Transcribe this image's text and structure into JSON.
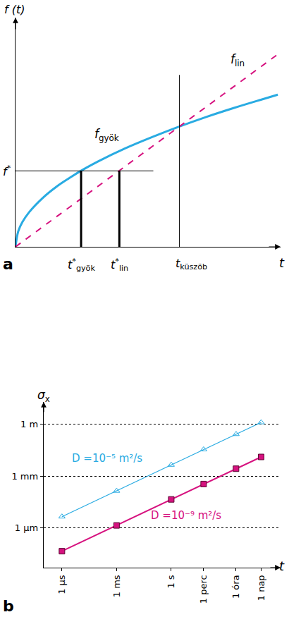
{
  "chart_data": [
    {
      "type": "line",
      "panel": "a",
      "x_label": "t",
      "y_label": "f (t)",
      "xlim": [
        0,
        9.7
      ],
      "ylim": [
        0,
        8
      ],
      "tick_labels": false,
      "series": [
        {
          "name": {
            "text": "f",
            "sub": "gyök"
          },
          "color": "#29abe2",
          "line_style": "solid",
          "x": [
            0,
            0.1,
            0.25,
            0.5,
            1,
            1.5,
            2,
            2.5,
            3,
            4,
            5,
            6,
            7,
            8,
            9,
            9.6
          ],
          "values": [
            0,
            0.54,
            0.86,
            1.21,
            1.71,
            2.1,
            2.42,
            2.71,
            2.97,
            3.43,
            3.83,
            4.2,
            4.54,
            4.85,
            5.14,
            5.31
          ]
        },
        {
          "name": {
            "text": "f",
            "sub": "lin"
          },
          "color": "#d6127f",
          "line_style": "dashed",
          "x": [
            0,
            9.6
          ],
          "values": [
            0,
            6.72
          ]
        }
      ],
      "reference_lines": [
        {
          "label": {
            "text": "f",
            "sup": "*"
          },
          "axis": "y",
          "value": 2.65
        },
        {
          "label": {
            "text": "t",
            "sup": "*",
            "sub": "gyök"
          },
          "axis": "x",
          "value": 2.4
        },
        {
          "label": {
            "text": "t",
            "sup": "*",
            "sub": "lin"
          },
          "axis": "x",
          "value": 3.8
        },
        {
          "label": {
            "text": "t",
            "sub": "küszöb"
          },
          "axis": "x",
          "value": 6
        }
      ]
    },
    {
      "type": "line",
      "panel": "b",
      "x_label": "t",
      "y_label": {
        "text": "σ",
        "sub": "x"
      },
      "log": true,
      "grid": "y",
      "xlim": [
        1e-07,
        1000000
      ],
      "ylim": [
        5e-09,
        20
      ],
      "xticks": [
        {
          "value": 1e-06,
          "label": "1 µs"
        },
        {
          "value": 0.001,
          "label": "1 ms"
        },
        {
          "value": 1,
          "label": "1 s"
        },
        {
          "value": 60,
          "label": "1 perc"
        },
        {
          "value": 3600,
          "label": "1 óra"
        },
        {
          "value": 86400,
          "label": "1 nap"
        }
      ],
      "yticks": [
        {
          "value": 1e-06,
          "label": "1 µm"
        },
        {
          "value": 0.001,
          "label": "1 mm"
        },
        {
          "value": 1,
          "label": "1 m"
        }
      ],
      "series": [
        {
          "name": "D =10⁻⁵ m²/s",
          "color": "#29abe2",
          "marker": "open-triangle",
          "x": [
            1e-06,
            0.001,
            1,
            60,
            3600,
            86400
          ],
          "values": [
            4.5e-06,
            0.00014,
            0.0045,
            0.035,
            0.27,
            1.3
          ]
        },
        {
          "name": "D =10⁻⁹ m²/s",
          "color": "#d6127f",
          "marker": "square",
          "x": [
            1e-06,
            0.001,
            1,
            60,
            3600,
            86400
          ],
          "values": [
            4.5e-08,
            1.4e-06,
            4.5e-05,
            0.00035,
            0.0027,
            0.013
          ]
        }
      ]
    }
  ]
}
